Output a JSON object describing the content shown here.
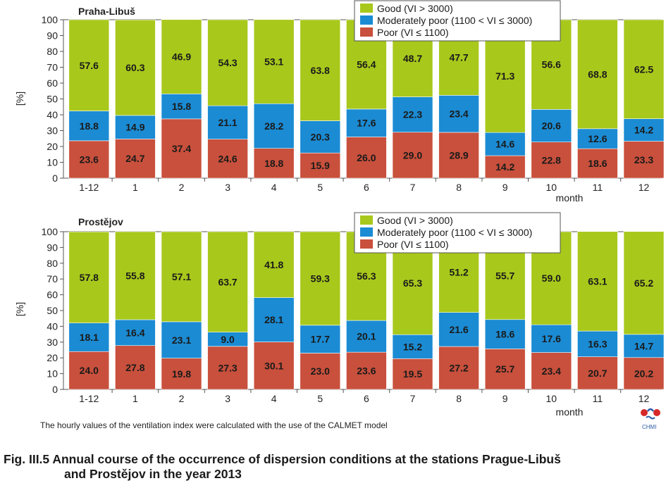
{
  "colors": {
    "good": "#a8c81c",
    "moderate": "#1b8bd3",
    "poor": "#c8503c"
  },
  "legend": {
    "good": "Good  (VI > 3000)",
    "moderate": "Moderately poor  (1100 < VI ≤ 3000)",
    "poor": "Poor  (VI ≤ 1100)"
  },
  "chart_data": [
    {
      "type": "bar",
      "stacked": true,
      "title": "Praha-Libuš",
      "ylabel": "[%]",
      "xlabel": "month",
      "ylim": [
        0,
        100
      ],
      "yticks": [
        0,
        10,
        20,
        30,
        40,
        50,
        60,
        70,
        80,
        90,
        100
      ],
      "legend_position": "top-right",
      "categories": [
        "1-12",
        "1",
        "2",
        "3",
        "4",
        "5",
        "6",
        "7",
        "8",
        "9",
        "10",
        "11",
        "12"
      ],
      "series": [
        {
          "name": "Poor  (VI ≤ 1100)",
          "key": "poor",
          "values": [
            23.6,
            24.7,
            37.4,
            24.6,
            18.8,
            15.9,
            26.0,
            29.0,
            28.9,
            14.2,
            22.8,
            18.6,
            23.3
          ],
          "labels": [
            "23.6",
            "24.7",
            "37.4",
            "24.6",
            "18.8",
            "15.9",
            "26.0",
            "29.0",
            "28.9",
            "14.2",
            "22.8",
            "18.6",
            "23.3"
          ]
        },
        {
          "name": "Moderately poor  (1100 < VI ≤ 3000)",
          "key": "moderate",
          "values": [
            18.8,
            14.9,
            15.8,
            21.1,
            28.2,
            20.3,
            17.6,
            22.3,
            23.4,
            14.6,
            20.6,
            12.6,
            14.2
          ],
          "labels": [
            "18.8",
            "14.9",
            "15.8",
            "21.1",
            "28.2",
            "20.3",
            "17.6",
            "22.3",
            "23.4",
            "14.6",
            "20.6",
            "12.6",
            "14.2"
          ]
        },
        {
          "name": "Good  (VI > 3000)",
          "key": "good",
          "values": [
            57.6,
            60.3,
            46.9,
            54.3,
            53.1,
            63.8,
            56.4,
            48.7,
            47.7,
            71.3,
            56.6,
            68.8,
            62.5
          ],
          "labels": [
            "57.6",
            "60.3",
            "46.9",
            "54.3",
            "53.1",
            "63.8",
            "56.4",
            "48.7",
            "47.7",
            "71.3",
            "56.6",
            "68.8",
            "62.5"
          ]
        }
      ]
    },
    {
      "type": "bar",
      "stacked": true,
      "title": "Prostějov",
      "ylabel": "[%]",
      "xlabel": "month",
      "ylim": [
        0,
        100
      ],
      "yticks": [
        0,
        10,
        20,
        30,
        40,
        50,
        60,
        70,
        80,
        90,
        100
      ],
      "legend_position": "top-right",
      "categories": [
        "1-12",
        "1",
        "2",
        "3",
        "4",
        "5",
        "6",
        "7",
        "8",
        "9",
        "10",
        "11",
        "12"
      ],
      "series": [
        {
          "name": "Poor  (VI ≤ 1100)",
          "key": "poor",
          "values": [
            24.0,
            27.8,
            19.8,
            27.3,
            30.1,
            23.0,
            23.6,
            19.5,
            27.2,
            25.7,
            23.4,
            20.7,
            20.2
          ],
          "labels": [
            "24.0",
            "27.8",
            "19.8",
            "27.3",
            "30.1",
            "23.0",
            "23.6",
            "19.5",
            "27.2",
            "25.7",
            "23.4",
            "20.7",
            "20.2"
          ]
        },
        {
          "name": "Moderately poor  (1100 < VI ≤ 3000)",
          "key": "moderate",
          "values": [
            18.1,
            16.4,
            23.1,
            9.0,
            28.1,
            17.7,
            20.1,
            15.2,
            21.6,
            18.6,
            17.6,
            16.3,
            14.7
          ],
          "labels": [
            "18.1",
            "16.4",
            "23.1",
            "9.0",
            "28.1",
            "17.7",
            "20.1",
            "15.2",
            "21.6",
            "18.6",
            "17.6",
            "16.3",
            "14.7"
          ]
        },
        {
          "name": "Good  (VI > 3000)",
          "key": "good",
          "values": [
            57.8,
            55.8,
            57.1,
            63.7,
            41.8,
            59.3,
            56.3,
            65.3,
            51.2,
            55.7,
            59.0,
            63.1,
            65.2
          ],
          "labels": [
            "57.8",
            "55.8",
            "57.1",
            "63.7",
            "41.8",
            "59.3",
            "56.3",
            "65.3",
            "51.2",
            "55.7",
            "59.0",
            "63.1",
            "65.2"
          ]
        }
      ]
    }
  ],
  "footnote": "The hourly values of the ventilation index were calculated with the use of the CALMET model",
  "caption": {
    "line1": "Fig. III.5  Annual course of the occurrence of dispersion conditions at the stations Prague-Libuš",
    "line2": "and Prostějov in the year 2013"
  },
  "logo": {
    "text": "CHMI"
  }
}
